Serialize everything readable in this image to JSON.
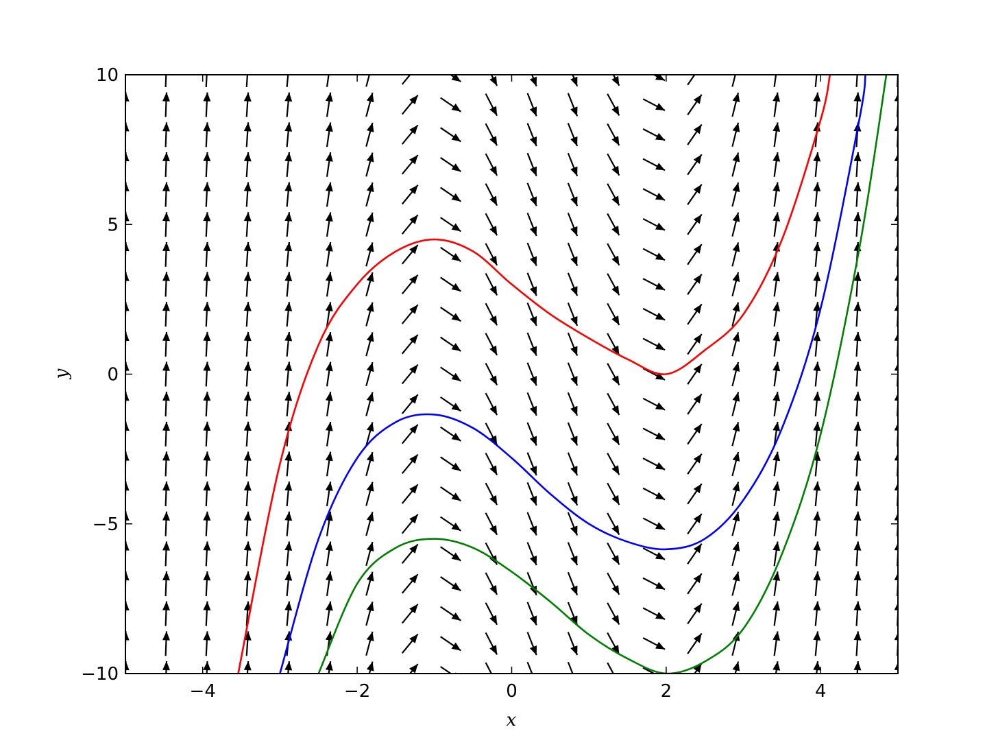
{
  "chart_data": {
    "type": "line",
    "title": "",
    "xlabel": "x",
    "ylabel": "y",
    "xlim": [
      -5,
      5
    ],
    "ylim": [
      -10,
      10
    ],
    "x_ticks": [
      -4,
      -2,
      0,
      2,
      4
    ],
    "x_tick_labels": [
      "−4",
      "−2",
      "0",
      "2",
      "4"
    ],
    "y_ticks": [
      -10,
      -5,
      0,
      5,
      10
    ],
    "y_tick_labels": [
      "−10",
      "−5",
      "0",
      "5",
      "10"
    ],
    "grid": false,
    "slope_field": {
      "x_range": [
        -5,
        5
      ],
      "y_range": [
        -10,
        10
      ],
      "nx": 20,
      "ny": 21,
      "arrow_color": "#000000"
    },
    "series": [
      {
        "color": "#ff0000",
        "x": [
          -3.54,
          -3.0,
          -2.5,
          -2.0,
          -1.5,
          -1.0,
          -0.5,
          0.0,
          0.5,
          1.0,
          1.5,
          2.0,
          2.5,
          3.0,
          3.5,
          4.0,
          4.12
        ],
        "y": [
          -10.0,
          -3.0,
          0.98,
          3.0,
          4.1,
          4.5,
          4.1,
          3.0,
          2.0,
          1.2,
          0.5,
          0.0,
          0.8,
          2.0,
          4.5,
          8.5,
          10.0
        ]
      },
      {
        "color": "#0000ff",
        "x": [
          -3.0,
          -2.5,
          -2.0,
          -1.5,
          -1.0,
          -0.5,
          0.0,
          0.5,
          1.0,
          1.5,
          2.0,
          2.5,
          3.0,
          3.5,
          4.0,
          4.5,
          4.58
        ],
        "y": [
          -10.0,
          -5.5,
          -2.8,
          -1.6,
          -1.35,
          -1.8,
          -2.8,
          -4.0,
          -5.0,
          -5.6,
          -5.85,
          -5.5,
          -4.2,
          -1.8,
          2.2,
          8.5,
          10.0
        ]
      },
      {
        "color": "#008000",
        "x": [
          -2.5,
          -2.0,
          -1.5,
          -1.0,
          -0.5,
          0.0,
          0.5,
          1.0,
          1.5,
          2.0,
          2.5,
          3.0,
          3.5,
          4.0,
          4.5,
          4.85
        ],
        "y": [
          -10.0,
          -7.0,
          -5.8,
          -5.5,
          -5.8,
          -6.6,
          -7.6,
          -8.7,
          -9.5,
          -10.0,
          -9.6,
          -8.5,
          -6.0,
          -2.0,
          4.2,
          10.0
        ]
      }
    ]
  }
}
